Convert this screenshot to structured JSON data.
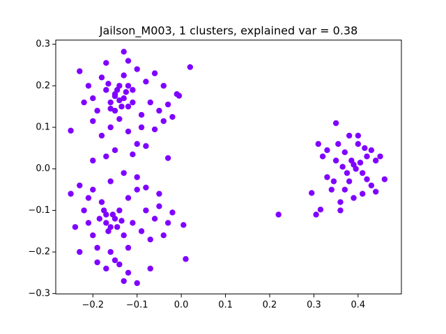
{
  "chart_data": {
    "type": "scatter",
    "title": "Jailson_M003, 1 clusters, explained var = 0.38",
    "color": "#8000ff",
    "xlim": [
      -0.284,
      0.498
    ],
    "ylim": [
      -0.301,
      0.31
    ],
    "xticks": [
      {
        "value": -0.2,
        "label": "−0.2"
      },
      {
        "value": -0.1,
        "label": "−0.1"
      },
      {
        "value": 0.0,
        "label": "0.0"
      },
      {
        "value": 0.1,
        "label": "0.1"
      },
      {
        "value": 0.2,
        "label": "0.2"
      },
      {
        "value": 0.3,
        "label": "0.3"
      },
      {
        "value": 0.4,
        "label": "0.4"
      }
    ],
    "yticks": [
      {
        "value": -0.3,
        "label": "−0.3"
      },
      {
        "value": -0.2,
        "label": "−0.2"
      },
      {
        "value": -0.1,
        "label": "−0.1"
      },
      {
        "value": 0.0,
        "label": "0.0"
      },
      {
        "value": 0.1,
        "label": "0.1"
      },
      {
        "value": 0.2,
        "label": "0.2"
      },
      {
        "value": 0.3,
        "label": "0.3"
      }
    ],
    "x": [
      -0.23,
      -0.21,
      -0.2,
      -0.19,
      -0.18,
      -0.17,
      -0.16,
      -0.15,
      -0.14,
      -0.13,
      -0.12,
      -0.11,
      -0.1,
      -0.09,
      -0.08,
      -0.07,
      -0.06,
      -0.05,
      -0.04,
      -0.03,
      -0.02,
      -0.01,
      -0.15,
      -0.14,
      -0.16,
      -0.18,
      -0.12,
      -0.1,
      -0.08,
      -0.13,
      -0.17,
      -0.12,
      -0.2,
      -0.22,
      -0.14,
      -0.135,
      -0.15,
      -0.125,
      -0.16,
      -0.11,
      -0.145,
      -0.165,
      -0.09,
      -0.06,
      -0.04,
      -0.15,
      -0.17,
      -0.2,
      -0.11,
      -0.12,
      -0.25,
      -0.23,
      -0.22,
      -0.21,
      -0.2,
      -0.19,
      -0.18,
      -0.17,
      -0.16,
      -0.15,
      -0.14,
      -0.13,
      -0.12,
      -0.11,
      -0.1,
      -0.09,
      -0.08,
      -0.07,
      -0.06,
      -0.05,
      -0.04,
      -0.03,
      -0.02,
      -0.16,
      -0.14,
      -0.12,
      -0.1,
      -0.13,
      -0.15,
      -0.17,
      -0.19,
      -0.23,
      -0.24,
      -0.2,
      -0.16,
      -0.13,
      -0.1,
      -0.08,
      -0.17,
      -0.155,
      -0.165,
      -0.145,
      -0.175,
      -0.185,
      -0.135,
      -0.07,
      -0.05,
      -0.21,
      -0.12,
      0.005,
      0.31,
      0.32,
      0.33,
      0.34,
      0.35,
      0.36,
      0.37,
      0.38,
      0.39,
      0.4,
      0.41,
      0.42,
      0.43,
      0.44,
      0.45,
      0.46,
      0.35,
      0.36,
      0.38,
      0.4,
      0.41,
      0.37,
      0.39,
      0.395,
      0.385,
      0.375,
      0.405,
      0.365,
      0.33,
      0.42,
      0.44,
      0.345,
      0.355,
      0.415,
      0.43,
      0.02,
      0.22,
      0.01,
      -0.25,
      -0.13,
      0.295,
      0.305,
      -0.03,
      0.315,
      -0.005
    ],
    "values": [
      0.235,
      0.2,
      0.17,
      0.14,
      0.22,
      0.19,
      0.16,
      0.18,
      0.2,
      0.17,
      0.15,
      0.19,
      0.24,
      0.13,
      0.21,
      0.16,
      0.23,
      0.14,
      0.2,
      0.155,
      0.125,
      0.18,
      0.14,
      0.12,
      0.1,
      0.08,
      0.09,
      0.06,
      0.055,
      0.225,
      0.255,
      0.26,
      0.115,
      0.16,
      0.165,
      0.15,
      0.175,
      0.185,
      0.145,
      0.16,
      0.19,
      0.205,
      0.1,
      0.095,
      0.115,
      0.045,
      0.03,
      0.02,
      0.035,
      0.2,
      -0.06,
      -0.04,
      -0.1,
      -0.13,
      -0.16,
      -0.19,
      -0.08,
      -0.11,
      -0.14,
      -0.12,
      -0.1,
      -0.16,
      -0.07,
      -0.13,
      -0.05,
      -0.15,
      -0.1,
      -0.17,
      -0.12,
      -0.09,
      -0.16,
      -0.13,
      -0.105,
      -0.2,
      -0.23,
      -0.25,
      -0.275,
      -0.27,
      -0.22,
      -0.24,
      -0.225,
      -0.2,
      -0.14,
      -0.05,
      -0.03,
      -0.01,
      -0.02,
      -0.045,
      -0.13,
      -0.11,
      -0.15,
      -0.14,
      -0.1,
      -0.12,
      -0.125,
      -0.24,
      -0.06,
      -0.07,
      -0.19,
      -0.135,
      0.06,
      0.03,
      -0.02,
      -0.05,
      0.02,
      -0.08,
      0.04,
      -0.03,
      0.01,
      0.06,
      -0.01,
      0.03,
      -0.04,
      0.02,
      0.03,
      -0.025,
      0.11,
      -0.1,
      0.08,
      0.08,
      -0.06,
      -0.05,
      -0.07,
      0.0,
      0.02,
      -0.01,
      0.015,
      0.005,
      0.045,
      -0.025,
      -0.055,
      -0.03,
      0.06,
      0.05,
      0.045,
      0.245,
      -0.11,
      -0.217,
      0.092,
      0.282,
      -0.058,
      -0.11,
      0.026,
      -0.098,
      0.176
    ]
  }
}
